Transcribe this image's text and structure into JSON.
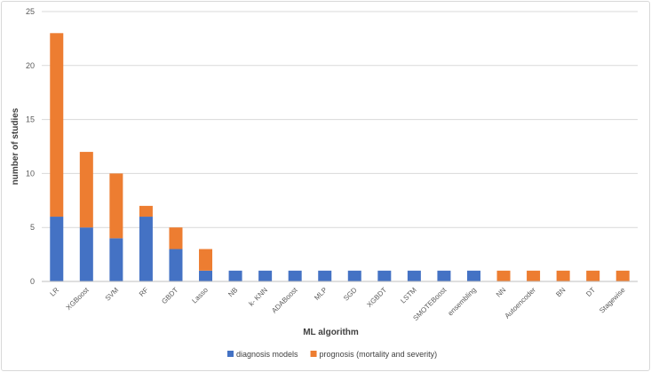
{
  "chart_data": {
    "type": "bar",
    "stacked": true,
    "title": "",
    "xlabel": "ML algorithm",
    "ylabel": "number of studies",
    "ylim": [
      0,
      25
    ],
    "yticks": [
      0,
      5,
      10,
      15,
      20,
      25
    ],
    "grid": true,
    "legend_position": "bottom",
    "categories": [
      "LR",
      "XGBoost",
      "SVM",
      "RF",
      "GBDT",
      "Lasso",
      "NB",
      "k- KNN",
      "ADABoost",
      "MLP",
      "SGD",
      "XGBDT",
      "LSTM",
      "SMOTEBoost",
      "ensembling",
      "NN",
      "Autoencoder",
      "BN",
      "DT",
      "Stagewise"
    ],
    "series": [
      {
        "name": "diagnosis models",
        "color": "#4472c4",
        "values": [
          6,
          5,
          4,
          6,
          3,
          1,
          1,
          1,
          1,
          1,
          1,
          1,
          1,
          1,
          1,
          0,
          0,
          0,
          0,
          0
        ]
      },
      {
        "name": "prognosis (mortality and severity)",
        "color": "#ed7d31",
        "values": [
          17,
          7,
          6,
          1,
          2,
          2,
          0,
          0,
          0,
          0,
          0,
          0,
          0,
          0,
          0,
          1,
          1,
          1,
          1,
          1
        ]
      }
    ]
  }
}
